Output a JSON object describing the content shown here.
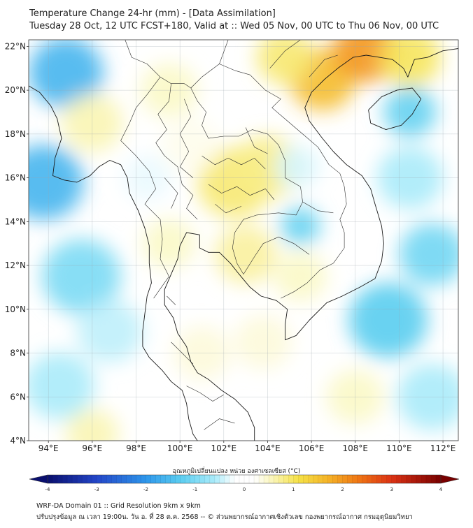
{
  "title": "Temperature Change 24-hr (mm) - [Data Assimilation]",
  "subtitle": "Tuesday 28 Oct, 12 UTC FCST+180, Valid at :: Wed 05 Nov, 00 UTC to Thu 06 Nov, 00 UTC",
  "axes": {
    "lat_ticks": [
      "22°N",
      "20°N",
      "18°N",
      "16°N",
      "14°N",
      "12°N",
      "10°N",
      "8°N",
      "6°N",
      "4°N"
    ],
    "lon_ticks": [
      "94°E",
      "96°E",
      "98°E",
      "100°E",
      "102°E",
      "104°E",
      "106°E",
      "108°E",
      "110°E",
      "112°E"
    ],
    "lat_range": [
      4,
      22.3
    ],
    "lon_range": [
      93.1,
      112.7
    ]
  },
  "colorbar": {
    "label": "อุณหภูมิเปลี่ยนแปลง หน่วย องศาเซลเซียส (°C)",
    "ticks": [
      "-4",
      "-3",
      "-2",
      "-1",
      "0",
      "1",
      "2",
      "3",
      "4"
    ],
    "range": [
      -4,
      4
    ]
  },
  "footer": {
    "line1": "WRF-DA Domain 01 :: Grid Resolution 9km x 9km",
    "line2": "ปรับปรุงข้อมูล ณ เวลา 19:00น. วัน อ. ที่ 28 ต.ค. 2568 -- © ส่วนพยากรณ์อากาศเชิงตัวเลข กองพยากรณ์อากาศ กรมอุตุนิยมวิทยา"
  },
  "colors": {
    "neutral": "#ffffff",
    "cool": "#4fd2f0",
    "warm": "#f2df3a",
    "hot": "#f08a1c"
  },
  "field_blobs": [
    {
      "lon": 94.8,
      "lat": 20.8,
      "value": -1.6,
      "radius_deg": 1.7
    },
    {
      "lon": 93.8,
      "lat": 15.8,
      "value": -1.6,
      "radius_deg": 1.8
    },
    {
      "lon": 95.5,
      "lat": 11.5,
      "value": -1.0,
      "radius_deg": 1.8
    },
    {
      "lon": 94.5,
      "lat": 6.5,
      "value": -0.6,
      "radius_deg": 1.6
    },
    {
      "lon": 96.8,
      "lat": 9.0,
      "value": -0.5,
      "radius_deg": 1.5
    },
    {
      "lon": 96.0,
      "lat": 18.5,
      "value": 0.6,
      "radius_deg": 1.4
    },
    {
      "lon": 99.5,
      "lat": 20.0,
      "value": 0.5,
      "radius_deg": 1.3
    },
    {
      "lon": 102.5,
      "lat": 15.8,
      "value": 0.9,
      "radius_deg": 1.7
    },
    {
      "lon": 104.0,
      "lat": 16.5,
      "value": 0.8,
      "radius_deg": 1.5
    },
    {
      "lon": 99.5,
      "lat": 13.0,
      "value": 0.5,
      "radius_deg": 1.2
    },
    {
      "lon": 103.0,
      "lat": 12.5,
      "value": 0.7,
      "radius_deg": 1.4
    },
    {
      "lon": 101.0,
      "lat": 8.0,
      "value": 0.4,
      "radius_deg": 1.3
    },
    {
      "lon": 105.5,
      "lat": 11.5,
      "value": 0.5,
      "radius_deg": 1.2
    },
    {
      "lon": 106.5,
      "lat": 20.5,
      "value": 1.6,
      "radius_deg": 1.5
    },
    {
      "lon": 108.5,
      "lat": 21.8,
      "value": 2.0,
      "radius_deg": 1.5
    },
    {
      "lon": 104.8,
      "lat": 21.5,
      "value": 0.9,
      "radius_deg": 1.3
    },
    {
      "lon": 110.5,
      "lat": 21.5,
      "value": 1.0,
      "radius_deg": 1.4
    },
    {
      "lon": 110.5,
      "lat": 19.0,
      "value": -1.2,
      "radius_deg": 1.2
    },
    {
      "lon": 105.5,
      "lat": 13.8,
      "value": -1.2,
      "radius_deg": 0.9
    },
    {
      "lon": 105.3,
      "lat": 16.5,
      "value": -0.4,
      "radius_deg": 1.0
    },
    {
      "lon": 109.5,
      "lat": 9.5,
      "value": -1.3,
      "radius_deg": 1.8
    },
    {
      "lon": 111.5,
      "lat": 12.5,
      "value": -1.1,
      "radius_deg": 1.5
    },
    {
      "lon": 110.5,
      "lat": 16.0,
      "value": -0.6,
      "radius_deg": 1.5
    },
    {
      "lon": 111.5,
      "lat": 6.0,
      "value": -0.6,
      "radius_deg": 1.6
    },
    {
      "lon": 108.0,
      "lat": 6.0,
      "value": 0.5,
      "radius_deg": 1.3
    },
    {
      "lon": 96.0,
      "lat": 4.3,
      "value": 0.6,
      "radius_deg": 1.2
    },
    {
      "lon": 103.8,
      "lat": 8.5,
      "value": 0.4,
      "radius_deg": 1.3
    },
    {
      "lon": 100.5,
      "lat": 17.5,
      "value": 0.3,
      "radius_deg": 1.3
    },
    {
      "lon": 98.5,
      "lat": 16.0,
      "value": -0.3,
      "radius_deg": 1.1
    }
  ],
  "coastlines": [
    [
      [
        93.1,
        20.2
      ],
      [
        93.6,
        19.9
      ],
      [
        94.1,
        19.3
      ],
      [
        94.4,
        18.7
      ],
      [
        94.6,
        17.8
      ],
      [
        94.3,
        16.9
      ],
      [
        94.2,
        16.1
      ],
      [
        94.7,
        15.9
      ],
      [
        95.3,
        15.8
      ],
      [
        95.9,
        16.1
      ],
      [
        96.3,
        16.5
      ],
      [
        96.8,
        16.8
      ],
      [
        97.3,
        16.6
      ],
      [
        97.6,
        16.0
      ],
      [
        97.7,
        15.3
      ],
      [
        98.1,
        14.5
      ],
      [
        98.4,
        13.7
      ],
      [
        98.6,
        12.9
      ],
      [
        98.6,
        12.1
      ],
      [
        98.7,
        11.2
      ],
      [
        98.5,
        10.6
      ],
      [
        98.4,
        9.8
      ],
      [
        98.3,
        9.0
      ],
      [
        98.3,
        8.3
      ],
      [
        98.6,
        7.8
      ],
      [
        99.2,
        7.2
      ],
      [
        99.6,
        6.7
      ],
      [
        100.1,
        6.3
      ],
      [
        100.3,
        5.7
      ],
      [
        100.4,
        5.0
      ],
      [
        100.6,
        4.3
      ],
      [
        100.8,
        4.0
      ]
    ],
    [
      [
        103.4,
        4.0
      ],
      [
        103.4,
        4.6
      ],
      [
        103.1,
        5.3
      ],
      [
        102.5,
        5.9
      ],
      [
        101.9,
        6.3
      ],
      [
        101.3,
        6.8
      ],
      [
        100.8,
        7.1
      ],
      [
        100.5,
        7.6
      ],
      [
        100.3,
        8.3
      ],
      [
        99.9,
        8.9
      ],
      [
        99.7,
        9.6
      ],
      [
        99.3,
        10.2
      ],
      [
        99.3,
        10.9
      ],
      [
        99.6,
        11.6
      ],
      [
        99.9,
        12.3
      ],
      [
        100.0,
        12.9
      ],
      [
        100.3,
        13.5
      ],
      [
        100.9,
        13.4
      ],
      [
        100.9,
        12.8
      ],
      [
        101.3,
        12.6
      ],
      [
        101.8,
        12.6
      ],
      [
        102.3,
        12.1
      ],
      [
        102.7,
        11.6
      ],
      [
        103.2,
        11.0
      ],
      [
        103.7,
        10.6
      ],
      [
        104.4,
        10.4
      ],
      [
        104.9,
        10.0
      ],
      [
        104.8,
        9.3
      ],
      [
        104.8,
        8.6
      ],
      [
        105.3,
        8.8
      ],
      [
        105.9,
        9.5
      ],
      [
        106.7,
        10.3
      ],
      [
        107.4,
        10.6
      ],
      [
        108.2,
        11.0
      ],
      [
        108.9,
        11.4
      ],
      [
        109.2,
        12.2
      ],
      [
        109.3,
        13.0
      ],
      [
        109.2,
        13.8
      ],
      [
        108.9,
        14.8
      ],
      [
        108.7,
        15.5
      ],
      [
        108.3,
        16.1
      ],
      [
        107.6,
        16.6
      ],
      [
        107.0,
        17.2
      ],
      [
        106.5,
        17.8
      ],
      [
        105.9,
        18.6
      ],
      [
        105.7,
        19.2
      ],
      [
        106.0,
        19.9
      ],
      [
        106.6,
        20.5
      ],
      [
        107.2,
        21.0
      ],
      [
        107.9,
        21.5
      ],
      [
        108.5,
        21.6
      ],
      [
        109.1,
        21.5
      ],
      [
        109.7,
        21.4
      ],
      [
        110.2,
        21.0
      ],
      [
        110.4,
        20.6
      ],
      [
        110.7,
        21.4
      ],
      [
        111.3,
        21.5
      ],
      [
        112.0,
        21.8
      ],
      [
        112.7,
        21.9
      ]
    ],
    [
      [
        108.6,
        19.1
      ],
      [
        108.7,
        18.5
      ],
      [
        109.4,
        18.2
      ],
      [
        110.1,
        18.4
      ],
      [
        110.6,
        18.9
      ],
      [
        111.0,
        19.6
      ],
      [
        110.6,
        20.1
      ],
      [
        109.9,
        20.0
      ],
      [
        109.2,
        19.7
      ],
      [
        108.6,
        19.1
      ]
    ]
  ],
  "borders": [
    [
      [
        97.5,
        22.3
      ],
      [
        97.8,
        21.5
      ],
      [
        98.5,
        21.2
      ],
      [
        99.1,
        20.6
      ],
      [
        99.6,
        20.3
      ],
      [
        100.2,
        20.3
      ],
      [
        100.5,
        20.1
      ]
    ],
    [
      [
        100.5,
        20.1
      ],
      [
        100.8,
        19.5
      ],
      [
        101.2,
        19.0
      ],
      [
        101.0,
        18.4
      ],
      [
        101.3,
        17.8
      ],
      [
        102.0,
        17.9
      ],
      [
        102.7,
        17.9
      ],
      [
        103.3,
        18.2
      ],
      [
        104.0,
        18.0
      ],
      [
        104.5,
        17.5
      ],
      [
        104.8,
        16.8
      ],
      [
        104.8,
        16.0
      ],
      [
        105.5,
        15.6
      ],
      [
        105.6,
        14.9
      ],
      [
        105.3,
        14.3
      ],
      [
        104.5,
        14.4
      ],
      [
        103.5,
        14.3
      ],
      [
        102.9,
        14.1
      ],
      [
        102.5,
        13.5
      ],
      [
        102.4,
        12.8
      ],
      [
        102.6,
        12.1
      ],
      [
        102.9,
        11.6
      ]
    ],
    [
      [
        100.5,
        20.1
      ],
      [
        101.0,
        20.6
      ],
      [
        101.8,
        21.2
      ],
      [
        102.2,
        22.3
      ]
    ],
    [
      [
        101.8,
        21.2
      ],
      [
        102.5,
        20.9
      ],
      [
        103.2,
        20.7
      ],
      [
        103.9,
        20.0
      ],
      [
        104.6,
        19.6
      ],
      [
        104.2,
        19.2
      ],
      [
        104.9,
        18.6
      ],
      [
        105.6,
        18.0
      ],
      [
        106.3,
        17.4
      ],
      [
        106.8,
        16.6
      ],
      [
        107.3,
        16.2
      ],
      [
        107.5,
        15.6
      ],
      [
        107.6,
        14.8
      ]
    ],
    [
      [
        107.6,
        14.8
      ],
      [
        107.3,
        14.1
      ],
      [
        107.5,
        13.5
      ],
      [
        107.5,
        12.8
      ],
      [
        107.0,
        12.1
      ],
      [
        106.4,
        11.8
      ],
      [
        105.8,
        11.2
      ],
      [
        105.2,
        10.8
      ],
      [
        104.6,
        10.5
      ]
    ],
    [
      [
        99.1,
        20.6
      ],
      [
        98.5,
        19.8
      ],
      [
        98.0,
        19.2
      ],
      [
        97.7,
        18.5
      ],
      [
        97.3,
        17.7
      ],
      [
        98.0,
        17.0
      ],
      [
        98.6,
        16.3
      ],
      [
        98.9,
        15.5
      ],
      [
        98.4,
        14.8
      ],
      [
        99.1,
        14.1
      ],
      [
        99.2,
        13.2
      ],
      [
        99.1,
        12.3
      ],
      [
        99.5,
        11.5
      ],
      [
        98.8,
        10.5
      ]
    ],
    [
      [
        100.3,
        6.5
      ],
      [
        100.9,
        6.2
      ],
      [
        101.5,
        5.8
      ],
      [
        102.0,
        6.1
      ]
    ],
    [
      [
        99.6,
        20.3
      ],
      [
        99.5,
        19.5
      ],
      [
        99.0,
        18.9
      ],
      [
        99.4,
        18.2
      ],
      [
        98.9,
        17.6
      ],
      [
        99.3,
        17.0
      ]
    ],
    [
      [
        100.2,
        19.6
      ],
      [
        100.5,
        18.8
      ],
      [
        100.0,
        18.0
      ],
      [
        100.4,
        17.2
      ],
      [
        100.0,
        16.5
      ],
      [
        100.6,
        16.0
      ]
    ],
    [
      [
        101.0,
        17.0
      ],
      [
        101.6,
        16.6
      ],
      [
        102.2,
        16.9
      ],
      [
        102.8,
        16.6
      ],
      [
        103.4,
        16.9
      ],
      [
        103.9,
        16.4
      ]
    ],
    [
      [
        101.3,
        15.7
      ],
      [
        101.9,
        15.3
      ],
      [
        102.6,
        15.6
      ],
      [
        103.2,
        15.2
      ],
      [
        103.9,
        15.5
      ],
      [
        104.3,
        15.0
      ]
    ],
    [
      [
        101.6,
        14.8
      ],
      [
        102.1,
        14.4
      ],
      [
        102.8,
        14.7
      ]
    ],
    [
      [
        99.3,
        17.0
      ],
      [
        99.9,
        16.5
      ],
      [
        100.1,
        15.7
      ],
      [
        100.6,
        15.2
      ],
      [
        100.3,
        14.6
      ],
      [
        100.8,
        14.1
      ]
    ],
    [
      [
        99.3,
        16.0
      ],
      [
        99.9,
        15.3
      ],
      [
        99.6,
        14.6
      ]
    ],
    [
      [
        103.0,
        18.3
      ],
      [
        103.4,
        17.4
      ],
      [
        104.0,
        17.1
      ]
    ],
    [
      [
        102.9,
        11.6
      ],
      [
        103.4,
        12.4
      ],
      [
        103.8,
        13.0
      ],
      [
        104.5,
        13.3
      ],
      [
        105.2,
        13.0
      ],
      [
        105.9,
        12.5
      ]
    ],
    [
      [
        105.6,
        14.9
      ],
      [
        106.3,
        14.5
      ],
      [
        107.0,
        14.4
      ]
    ],
    [
      [
        105.9,
        20.6
      ],
      [
        106.6,
        21.4
      ],
      [
        107.2,
        21.6
      ]
    ],
    [
      [
        104.1,
        21.0
      ],
      [
        104.8,
        21.8
      ],
      [
        105.5,
        22.3
      ]
    ],
    [
      [
        99.6,
        8.5
      ],
      [
        100.1,
        8.0
      ],
      [
        100.6,
        7.5
      ]
    ],
    [
      [
        99.4,
        10.6
      ],
      [
        99.8,
        10.2
      ]
    ],
    [
      [
        101.1,
        4.5
      ],
      [
        101.8,
        5.0
      ],
      [
        102.5,
        4.8
      ]
    ]
  ]
}
